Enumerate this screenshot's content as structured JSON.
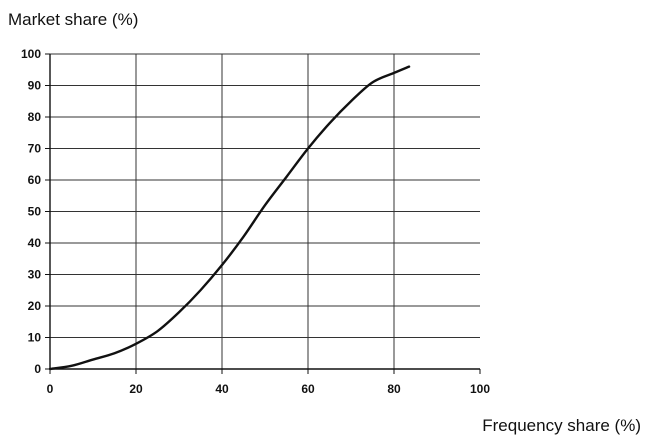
{
  "chart_data": {
    "type": "line",
    "title": "",
    "ylabel": "Market share (%)",
    "xlabel": "Frequency share (%)",
    "xlim": [
      0,
      100
    ],
    "ylim": [
      0,
      100
    ],
    "xticks": [
      "0",
      "20",
      "40",
      "60",
      "80",
      "100"
    ],
    "yticks": [
      "0",
      "10",
      "20",
      "30",
      "40",
      "50",
      "60",
      "70",
      "80",
      "90",
      "100"
    ],
    "grid": true,
    "legend": "none",
    "series": [
      {
        "color": "#111111",
        "x": [
          0,
          5,
          10,
          15,
          20,
          25,
          30,
          35,
          40,
          45,
          50,
          55,
          60,
          65,
          70,
          75,
          80,
          83.5
        ],
        "y": [
          0,
          1,
          3,
          5,
          8,
          12,
          18,
          25,
          33,
          42,
          52,
          61,
          70,
          78,
          85,
          91,
          94,
          96
        ]
      }
    ]
  }
}
